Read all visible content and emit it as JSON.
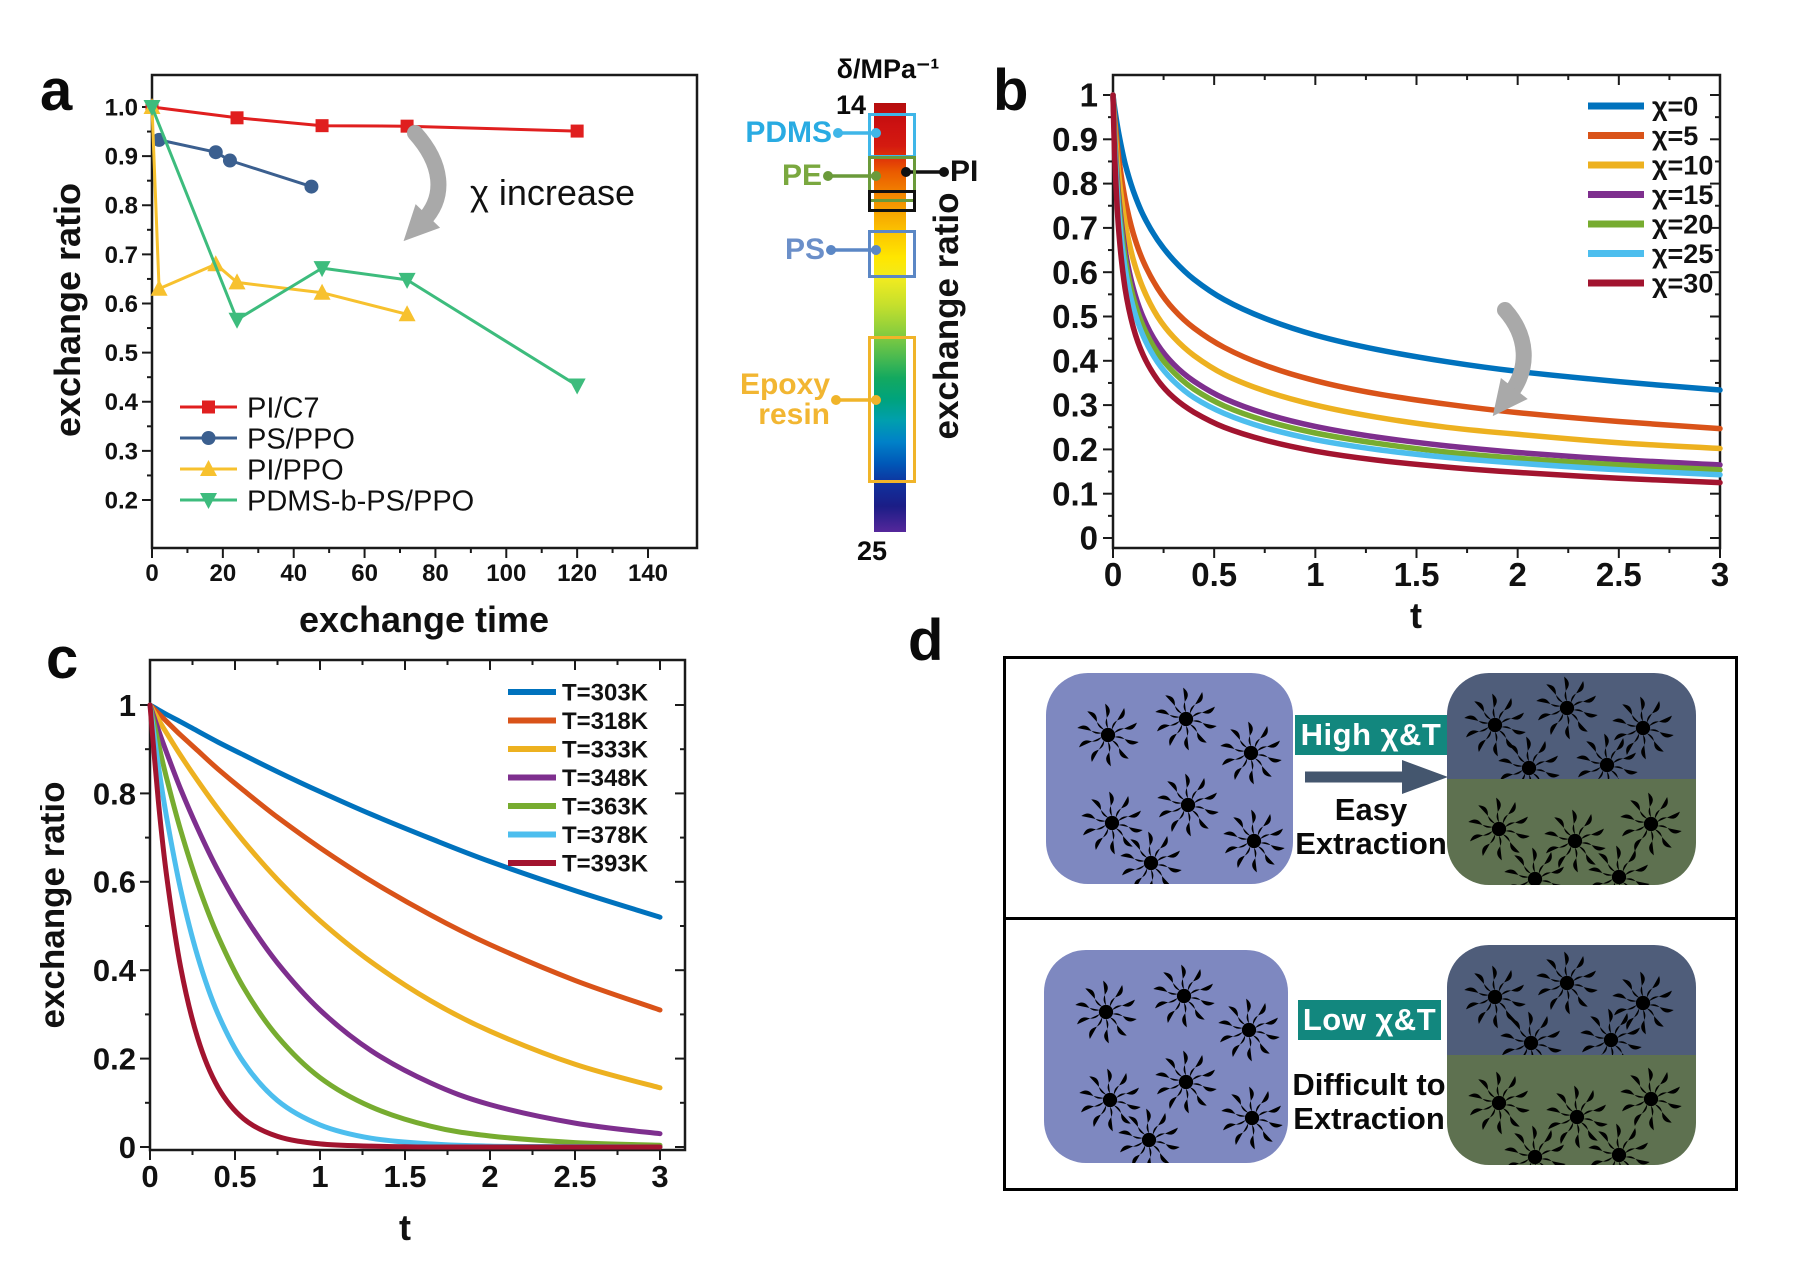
{
  "panel_labels": {
    "a": "a",
    "b": "b",
    "c": "c",
    "d": "d"
  },
  "chart_data": [
    {
      "id": "a",
      "type": "scatter",
      "xlabel": "exchange time",
      "ylabel": "exchange ratio",
      "x_axis": {
        "min": 0,
        "max": 140,
        "ticks": [
          0,
          20,
          40,
          60,
          80,
          100,
          120,
          140
        ],
        "labels": [
          "0",
          "20",
          "40",
          "60",
          "80",
          "100",
          "120",
          "140"
        ],
        "minor_step": 10
      },
      "y_axis": {
        "min": 0.2,
        "max": 1.0,
        "ticks": [
          0.2,
          0.3,
          0.4,
          0.5,
          0.6,
          0.7,
          0.8,
          0.9,
          1.0
        ],
        "labels": [
          "0.2",
          "0.3",
          "0.4",
          "0.5",
          "0.6",
          "0.7",
          "0.8",
          "0.9",
          "1.0"
        ],
        "minor_step": 0.05
      },
      "annotation": "χ increase",
      "legend_position": "bottom-left",
      "series": [
        {
          "name": "PI/C7",
          "color": "#e01f1f",
          "marker": "square",
          "points": [
            [
              0,
              1.0
            ],
            [
              24,
              0.978
            ],
            [
              48,
              0.962
            ],
            [
              72,
              0.961
            ],
            [
              120,
              0.951
            ]
          ]
        },
        {
          "name": "PS/PPO",
          "color": "#3b5f8f",
          "marker": "circle",
          "points": [
            [
              2,
              0.933
            ],
            [
              18,
              0.908
            ],
            [
              22,
              0.891
            ],
            [
              45,
              0.838
            ]
          ]
        },
        {
          "name": "PI/PPO",
          "color": "#f7c12e",
          "marker": "triangle-up",
          "points": [
            [
              0,
              1.0
            ],
            [
              2,
              0.63
            ],
            [
              18,
              0.68
            ],
            [
              24,
              0.643
            ],
            [
              48,
              0.622
            ],
            [
              72,
              0.578
            ]
          ]
        },
        {
          "name": "PDMS-b-PS/PPO",
          "color": "#3dbc7d",
          "marker": "triangle-down",
          "points": [
            [
              0,
              1.0
            ],
            [
              24,
              0.567
            ],
            [
              48,
              0.672
            ],
            [
              72,
              0.648
            ],
            [
              120,
              0.433
            ]
          ]
        }
      ]
    },
    {
      "id": "b",
      "type": "line",
      "xlabel": "t",
      "ylabel": "exchange ratio",
      "x_axis": {
        "min": 0,
        "max": 3,
        "ticks": [
          0,
          0.5,
          1,
          1.5,
          2,
          2.5,
          3
        ],
        "labels": [
          "0",
          "0.5",
          "1",
          "1.5",
          "2",
          "2.5",
          "3"
        ],
        "minor_step": 0.25
      },
      "y_axis": {
        "min": 0,
        "max": 1,
        "ticks": [
          0,
          0.1,
          0.2,
          0.3,
          0.4,
          0.5,
          0.6,
          0.7,
          0.8,
          0.9,
          1
        ],
        "labels": [
          "0",
          "0.1",
          "0.2",
          "0.3",
          "0.4",
          "0.5",
          "0.6",
          "0.7",
          "0.8",
          "0.9",
          "1"
        ],
        "minor_step": 0.05
      },
      "legend_position": "top-right",
      "x": [
        0,
        0.01,
        0.03,
        0.06,
        0.1,
        0.15,
        0.22,
        0.3,
        0.4,
        0.55,
        0.75,
        1,
        1.3,
        1.65,
        2,
        2.5,
        3
      ],
      "series": [
        {
          "name": "χ=0",
          "color": "#0072BD",
          "values": [
            1,
            0.965,
            0.909,
            0.845,
            0.784,
            0.728,
            0.673,
            0.627,
            0.584,
            0.538,
            0.496,
            0.458,
            0.426,
            0.398,
            0.376,
            0.353,
            0.334
          ]
        },
        {
          "name": "χ=5",
          "color": "#D95319",
          "values": [
            1,
            0.94,
            0.852,
            0.765,
            0.688,
            0.624,
            0.564,
            0.516,
            0.474,
            0.43,
            0.39,
            0.355,
            0.326,
            0.302,
            0.283,
            0.263,
            0.247
          ]
        },
        {
          "name": "χ=10",
          "color": "#EDB120",
          "values": [
            1,
            0.921,
            0.813,
            0.712,
            0.629,
            0.562,
            0.5,
            0.453,
            0.412,
            0.369,
            0.332,
            0.3,
            0.273,
            0.25,
            0.234,
            0.215,
            0.202
          ]
        },
        {
          "name": "χ=15",
          "color": "#7E2F8E",
          "values": [
            1,
            0.894,
            0.763,
            0.651,
            0.564,
            0.497,
            0.437,
            0.392,
            0.354,
            0.315,
            0.281,
            0.252,
            0.228,
            0.208,
            0.193,
            0.177,
            0.165
          ]
        },
        {
          "name": "χ=20",
          "color": "#77AC30",
          "values": [
            1,
            0.885,
            0.747,
            0.632,
            0.544,
            0.477,
            0.418,
            0.374,
            0.336,
            0.298,
            0.265,
            0.237,
            0.214,
            0.194,
            0.18,
            0.165,
            0.154
          ]
        },
        {
          "name": "χ=25",
          "color": "#4DBEEE",
          "values": [
            1,
            0.873,
            0.727,
            0.609,
            0.521,
            0.455,
            0.397,
            0.354,
            0.317,
            0.281,
            0.249,
            0.222,
            0.2,
            0.182,
            0.169,
            0.154,
            0.143
          ]
        },
        {
          "name": "χ=30",
          "color": "#A2142F",
          "values": [
            1,
            0.845,
            0.684,
            0.563,
            0.476,
            0.412,
            0.357,
            0.317,
            0.284,
            0.25,
            0.221,
            0.196,
            0.176,
            0.16,
            0.148,
            0.135,
            0.125
          ]
        }
      ]
    },
    {
      "id": "c",
      "type": "line",
      "xlabel": "t",
      "ylabel": "exchange ratio",
      "x_axis": {
        "min": 0,
        "max": 3,
        "ticks": [
          0,
          0.5,
          1,
          1.5,
          2,
          2.5,
          3
        ],
        "labels": [
          "0",
          "0.5",
          "1",
          "1.5",
          "2",
          "2.5",
          "3"
        ],
        "minor_step": 0.25
      },
      "y_axis": {
        "min": 0,
        "max": 1,
        "ticks": [
          0,
          0.2,
          0.4,
          0.6,
          0.8,
          1
        ],
        "labels": [
          "0",
          "0.2",
          "0.4",
          "0.6",
          "0.8",
          "1"
        ],
        "minor_step": 0.1
      },
      "legend_position": "top-right",
      "x": [
        0,
        0.05,
        0.1,
        0.18,
        0.28,
        0.4,
        0.55,
        0.75,
        1,
        1.3,
        1.65,
        2,
        2.5,
        3
      ],
      "series": [
        {
          "name": "T=303K",
          "color": "#0072BD",
          "values": [
            1,
            0.989,
            0.978,
            0.962,
            0.941,
            0.916,
            0.887,
            0.849,
            0.804,
            0.753,
            0.698,
            0.646,
            0.58,
            0.52
          ]
        },
        {
          "name": "T=318K",
          "color": "#D95319",
          "values": [
            1,
            0.981,
            0.962,
            0.932,
            0.897,
            0.855,
            0.807,
            0.746,
            0.677,
            0.602,
            0.525,
            0.458,
            0.377,
            0.31
          ]
        },
        {
          "name": "T=333K",
          "color": "#EDB120",
          "values": [
            1,
            0.967,
            0.935,
            0.886,
            0.829,
            0.765,
            0.692,
            0.605,
            0.512,
            0.419,
            0.331,
            0.262,
            0.187,
            0.134
          ]
        },
        {
          "name": "T=348K",
          "color": "#7E2F8E",
          "values": [
            1,
            0.943,
            0.89,
            0.81,
            0.721,
            0.626,
            0.526,
            0.416,
            0.31,
            0.218,
            0.145,
            0.096,
            0.054,
            0.03
          ]
        },
        {
          "name": "T=363K",
          "color": "#77AC30",
          "values": [
            1,
            0.912,
            0.831,
            0.717,
            0.596,
            0.477,
            0.361,
            0.25,
            0.157,
            0.091,
            0.047,
            0.025,
            0.01,
            0.004
          ]
        },
        {
          "name": "T=378K",
          "color": "#4DBEEE",
          "values": [
            1,
            0.861,
            0.741,
            0.583,
            0.432,
            0.301,
            0.192,
            0.105,
            0.05,
            0.02,
            0.007,
            0.002,
            0.001,
            0
          ]
        },
        {
          "name": "T=393K",
          "color": "#A2142F",
          "values": [
            1,
            0.779,
            0.607,
            0.407,
            0.247,
            0.135,
            0.064,
            0.024,
            0.007,
            0.002,
            0,
            0,
            0,
            0
          ]
        }
      ]
    }
  ],
  "colorbar": {
    "title": "δ/MPa⁻¹",
    "top_value": "14",
    "bottom_value": "25",
    "gradient": [
      "#b50d0d 0%",
      "#cc1111 5%",
      "#d41a10 10%",
      "#e03508 13%",
      "#ea5a00 16%",
      "#f28300 21%",
      "#f7a800 26%",
      "#fcca00 31%",
      "#ffe600 36%",
      "#f0eb20 41%",
      "#c6e02c 47%",
      "#8ecf3c 53%",
      "#4dbb4f 59%",
      "#14a95f 64%",
      "#00a37c 69%",
      "#009fae 74%",
      "#0081c8 79%",
      "#0058b8 84%",
      "#10309c 89%",
      "#1b1d86 94%",
      "#55279b 100%"
    ],
    "materials": [
      {
        "name": "PDMS",
        "text_color": "#29abe2",
        "box_color": "#3fb6e8"
      },
      {
        "name": "PE",
        "text_color": "#7aa83f",
        "box_color": "#6a9a3a"
      },
      {
        "name": "PI",
        "text_color": "#111111",
        "box_color": "#111111"
      },
      {
        "name": "PS",
        "text_color": "#6b8fc9",
        "box_color": "#5b87c5"
      },
      {
        "name": "Epoxy resin",
        "text_color": "#f2b632",
        "box_color": "#f0b429"
      }
    ]
  },
  "diagram": {
    "badge_color": "#12877e",
    "arrow_color": "#44566e",
    "high": {
      "badge": "High χ&T",
      "caption": [
        "Easy",
        "Extraction"
      ]
    },
    "low": {
      "badge": "Low χ&T",
      "caption": [
        "Difficult to",
        "Extraction"
      ]
    }
  }
}
